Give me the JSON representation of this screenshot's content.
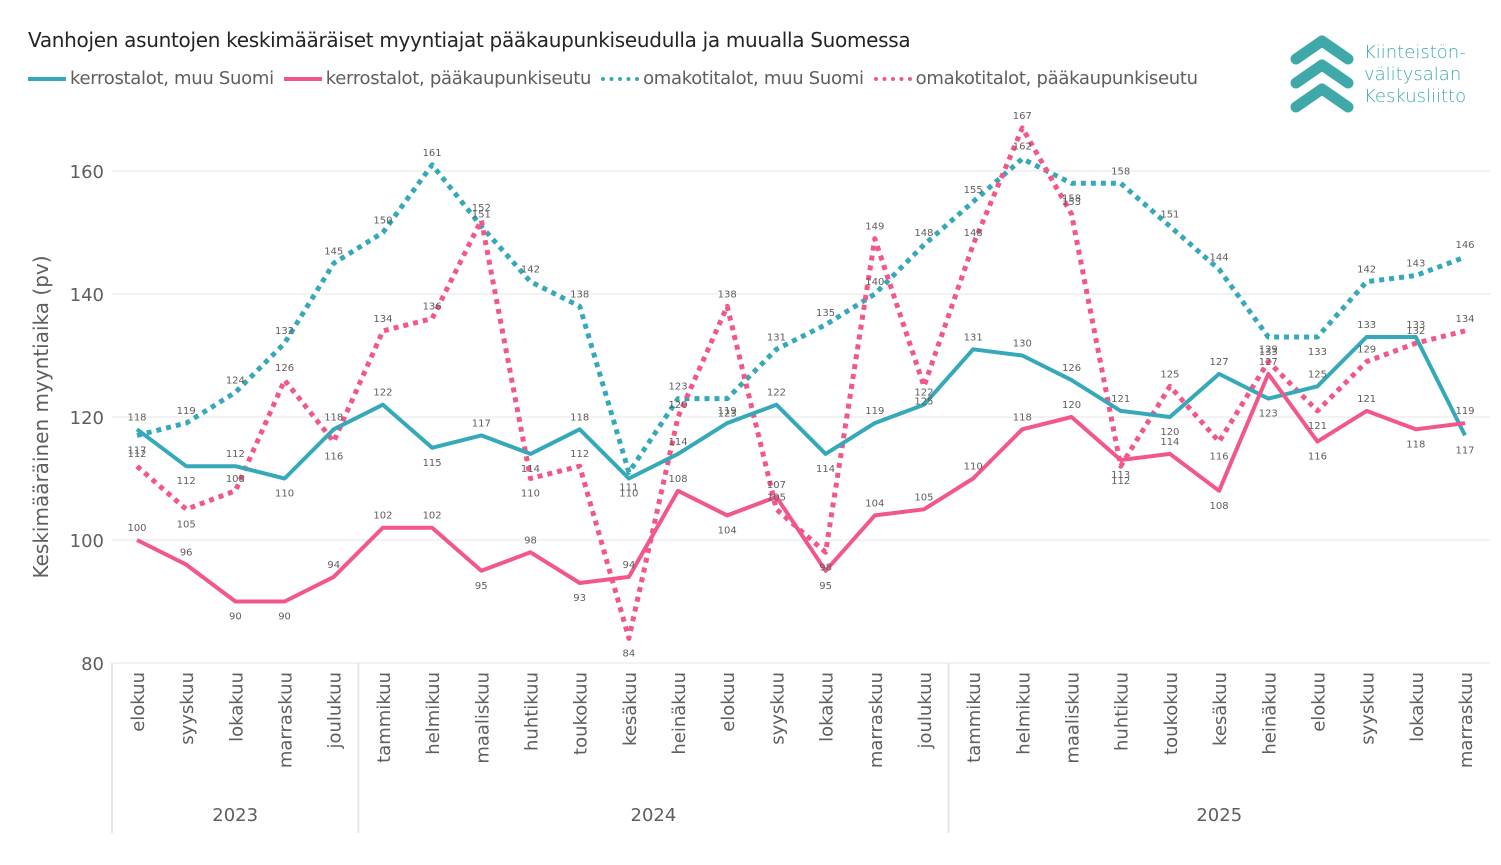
{
  "title": "Vanhojen asuntojen keskimääräiset myyntiajat pääkaupunkiseudulla ja muualla Suomessa",
  "logo": {
    "icon": "chevrons-up-icon",
    "lines": [
      "Kiinteistön-",
      "välitysalan",
      "Keskusliitto"
    ],
    "color": "#3fa9aa"
  },
  "chart_data": {
    "type": "line",
    "title": "Vanhojen asuntojen keskimääräiset myyntiajat pääkaupunkiseudulla ja muualla Suomessa",
    "xlabel": "",
    "ylabel": "Keskimääräinen myyntiaika (pv)",
    "ylim": [
      80,
      168
    ],
    "yticks": [
      80,
      100,
      120,
      140,
      160
    ],
    "grid": true,
    "legend_position": "top-left",
    "categories": [
      "elokuu",
      "syyskuu",
      "lokakuu",
      "marraskuu",
      "joulukuu",
      "tammikuu",
      "helmikuu",
      "maaliskuu",
      "huhtikuu",
      "toukokuu",
      "kesäkuu",
      "heinäkuu",
      "elokuu",
      "syyskuu",
      "lokakuu",
      "marraskuu",
      "joulukuu",
      "tammikuu",
      "helmikuu",
      "maaliskuu",
      "huhtikuu",
      "toukokuu",
      "kesäkuu",
      "heinäkuu",
      "elokuu",
      "syyskuu",
      "lokakuu",
      "marraskuu"
    ],
    "year_groups": [
      {
        "label": "2023",
        "start": 0,
        "count": 5
      },
      {
        "label": "2024",
        "start": 5,
        "count": 12
      },
      {
        "label": "2025",
        "start": 17,
        "count": 11
      }
    ],
    "series": [
      {
        "name": "kerrostalot, muu Suomi",
        "color": "#35a9b9",
        "dash": "solid",
        "values": [
          118,
          112,
          112,
          110,
          118,
          122,
          115,
          117,
          114,
          118,
          110,
          114,
          119,
          122,
          114,
          119,
          122,
          131,
          130,
          126,
          121,
          120,
          127,
          123,
          125,
          133,
          133,
          117
        ]
      },
      {
        "name": "kerrostalot, pääkaupunkiseutu",
        "color": "#f2578a",
        "dash": "solid",
        "values": [
          100,
          96,
          90,
          90,
          94,
          102,
          102,
          95,
          98,
          93,
          94,
          108,
          104,
          107,
          95,
          104,
          105,
          110,
          118,
          120,
          113,
          114,
          108,
          127,
          116,
          121,
          118,
          119
        ]
      },
      {
        "name": "omakotitalot, muu Suomi",
        "color": "#35a9b9",
        "dash": "dotted",
        "values": [
          117,
          119,
          124,
          132,
          145,
          150,
          161,
          151,
          142,
          138,
          111,
          123,
          123,
          131,
          135,
          140,
          148,
          155,
          162,
          158,
          158,
          151,
          144,
          133,
          133,
          142,
          143,
          146
        ]
      },
      {
        "name": "omakotitalot, pääkaupunkiseutu",
        "color": "#f2578a",
        "dash": "dotted",
        "values": [
          112,
          105,
          108,
          126,
          116,
          134,
          136,
          152,
          110,
          112,
          84,
          120,
          138,
          105,
          98,
          149,
          125,
          148,
          167,
          153,
          112,
          125,
          116,
          129,
          121,
          129,
          132,
          134
        ]
      }
    ]
  }
}
